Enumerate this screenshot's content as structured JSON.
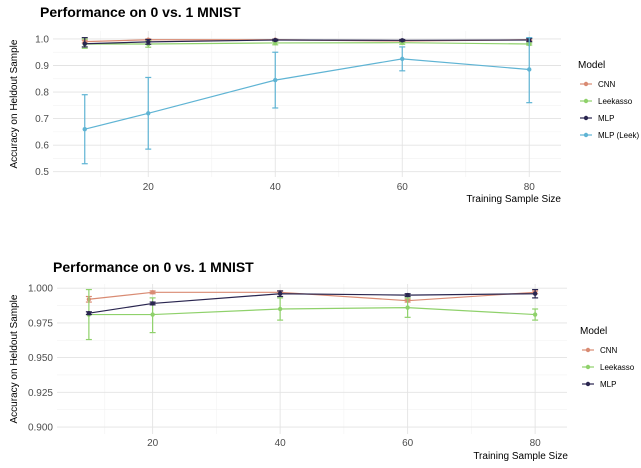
{
  "chart_data": [
    {
      "type": "line",
      "title": "Performance on 0 vs. 1 MNIST",
      "xlabel": "Training Sample Size",
      "ylabel": "Accuracy on Heldout Sample",
      "xlim": [
        5,
        85
      ],
      "ylim": [
        0.48,
        1.03
      ],
      "x_ticks": [
        20,
        40,
        60,
        80
      ],
      "y_ticks": [
        0.5,
        0.6,
        0.7,
        0.8,
        0.9,
        1.0
      ],
      "y_tick_labels": [
        "0.5",
        "0.6",
        "0.7",
        "0.8",
        "0.9",
        "1.0"
      ],
      "grid": true,
      "legend_title": "Model",
      "legend_position": "right",
      "series": [
        {
          "name": "CNN",
          "color": "#d98b73",
          "points": [
            {
              "x": 10,
              "y": 0.99,
              "lo": 0.985,
              "hi": 0.995
            },
            {
              "x": 20,
              "y": 0.997,
              "lo": 0.994,
              "hi": 1.0
            },
            {
              "x": 40,
              "y": 0.997,
              "lo": 0.995,
              "hi": 0.999
            },
            {
              "x": 60,
              "y": 0.992,
              "lo": 0.988,
              "hi": 0.996
            },
            {
              "x": 80,
              "y": 0.997,
              "lo": 0.994,
              "hi": 1.0
            }
          ]
        },
        {
          "name": "Leekasso",
          "color": "#8fd16b",
          "points": [
            {
              "x": 10,
              "y": 0.981,
              "lo": 0.965,
              "hi": 1.0
            },
            {
              "x": 20,
              "y": 0.981,
              "lo": 0.969,
              "hi": 0.993
            },
            {
              "x": 40,
              "y": 0.985,
              "lo": 0.978,
              "hi": 0.992
            },
            {
              "x": 60,
              "y": 0.986,
              "lo": 0.98,
              "hi": 0.992
            },
            {
              "x": 80,
              "y": 0.981,
              "lo": 0.977,
              "hi": 0.985
            }
          ]
        },
        {
          "name": "MLP",
          "color": "#2a2650",
          "points": [
            {
              "x": 10,
              "y": 0.982,
              "lo": 0.97,
              "hi": 1.005
            },
            {
              "x": 20,
              "y": 0.989,
              "lo": 0.98,
              "hi": 0.998
            },
            {
              "x": 40,
              "y": 0.996,
              "lo": 0.993,
              "hi": 0.999
            },
            {
              "x": 60,
              "y": 0.995,
              "lo": 0.992,
              "hi": 0.998
            },
            {
              "x": 80,
              "y": 0.996,
              "lo": 0.99,
              "hi": 1.002
            }
          ]
        },
        {
          "name": "MLP (Leek)",
          "color": "#5fb4d4",
          "points": [
            {
              "x": 10,
              "y": 0.66,
              "lo": 0.53,
              "hi": 0.79
            },
            {
              "x": 20,
              "y": 0.72,
              "lo": 0.585,
              "hi": 0.855
            },
            {
              "x": 40,
              "y": 0.845,
              "lo": 0.74,
              "hi": 0.95
            },
            {
              "x": 60,
              "y": 0.925,
              "lo": 0.88,
              "hi": 0.97
            },
            {
              "x": 80,
              "y": 0.885,
              "lo": 0.76,
              "hi": 1.005
            }
          ]
        }
      ]
    },
    {
      "type": "line",
      "title": "Performance on 0 vs. 1 MNIST",
      "xlabel": "Training Sample Size",
      "ylabel": "Accuracy on Heldout Sample",
      "xlim": [
        5,
        85
      ],
      "ylim": [
        0.895,
        1.003
      ],
      "x_ticks": [
        20,
        40,
        60,
        80
      ],
      "y_ticks": [
        0.9,
        0.925,
        0.95,
        0.975,
        1.0
      ],
      "y_tick_labels": [
        "0.900",
        "0.925",
        "0.950",
        "0.975",
        "1.000"
      ],
      "grid": true,
      "legend_title": "Model",
      "legend_position": "right",
      "series": [
        {
          "name": "CNN",
          "color": "#d98b73",
          "points": [
            {
              "x": 10,
              "y": 0.992,
              "lo": 0.99,
              "hi": 0.994
            },
            {
              "x": 20,
              "y": 0.997,
              "lo": 0.996,
              "hi": 0.998
            },
            {
              "x": 40,
              "y": 0.997,
              "lo": 0.996,
              "hi": 0.998
            },
            {
              "x": 60,
              "y": 0.991,
              "lo": 0.99,
              "hi": 0.992
            },
            {
              "x": 80,
              "y": 0.997,
              "lo": 0.996,
              "hi": 0.998
            }
          ]
        },
        {
          "name": "Leekasso",
          "color": "#8fd16b",
          "points": [
            {
              "x": 10,
              "y": 0.981,
              "lo": 0.963,
              "hi": 0.999
            },
            {
              "x": 20,
              "y": 0.981,
              "lo": 0.968,
              "hi": 0.993
            },
            {
              "x": 40,
              "y": 0.985,
              "lo": 0.977,
              "hi": 0.993
            },
            {
              "x": 60,
              "y": 0.986,
              "lo": 0.979,
              "hi": 0.993
            },
            {
              "x": 80,
              "y": 0.981,
              "lo": 0.977,
              "hi": 0.985
            }
          ]
        },
        {
          "name": "MLP",
          "color": "#2a2650",
          "points": [
            {
              "x": 10,
              "y": 0.982,
              "lo": 0.981,
              "hi": 0.983
            },
            {
              "x": 20,
              "y": 0.989,
              "lo": 0.988,
              "hi": 0.99
            },
            {
              "x": 40,
              "y": 0.996,
              "lo": 0.994,
              "hi": 0.998
            },
            {
              "x": 60,
              "y": 0.995,
              "lo": 0.994,
              "hi": 0.996
            },
            {
              "x": 80,
              "y": 0.996,
              "lo": 0.993,
              "hi": 0.999
            }
          ]
        }
      ]
    }
  ]
}
